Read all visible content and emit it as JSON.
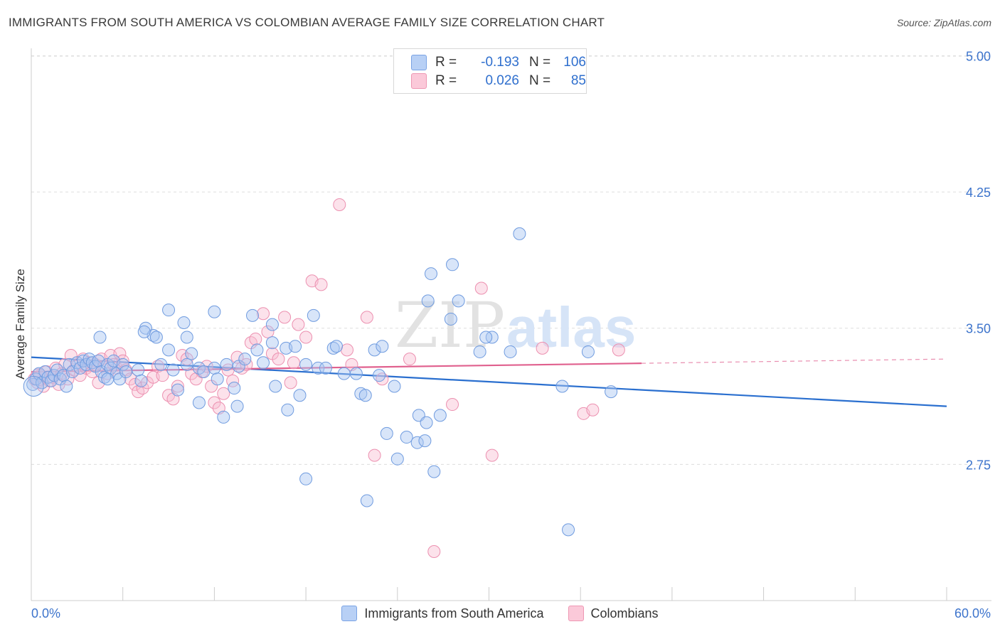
{
  "title": "IMMIGRANTS FROM SOUTH AMERICA VS COLOMBIAN AVERAGE FAMILY SIZE CORRELATION CHART",
  "source": "Source: ZipAtlas.com",
  "watermark": {
    "part1": "ZIP",
    "part2": "atlas"
  },
  "colors": {
    "blue_fill": "#a9c6f2",
    "blue_stroke": "#6f9bdf",
    "blue_line": "#2a6fcf",
    "pink_fill": "#f8bfd2",
    "pink_stroke": "#ec90b0",
    "pink_line": "#e0608e",
    "axis_label": "#3d74cc"
  },
  "legend": {
    "r_label": "R =",
    "n_label": "N =",
    "series": [
      {
        "r": "-0.193",
        "n": "106"
      },
      {
        "r": "0.026",
        "n": "85"
      }
    ]
  },
  "bottom_legend": [
    "Immigrants from South America",
    "Colombians"
  ],
  "chart_data": {
    "type": "scatter",
    "title": "IMMIGRANTS FROM SOUTH AMERICA VS COLOMBIAN AVERAGE FAMILY SIZE CORRELATION CHART",
    "xlabel": "",
    "ylabel": "Average Family Size",
    "xlim": [
      0,
      60
    ],
    "ylim": [
      2.0,
      5.08
    ],
    "x_tick_labels": [
      "0.0%",
      "60.0%"
    ],
    "y_ticks": [
      2.75,
      3.5,
      4.25,
      5.0
    ],
    "y_tick_labels": [
      "2.75",
      "3.50",
      "4.25",
      "5.00"
    ],
    "series": [
      {
        "name": "Immigrants from South America",
        "trend": {
          "x0": 0,
          "y0": 3.34,
          "x1": 60,
          "y1": 3.07,
          "dashed_from": null
        },
        "points": [
          [
            0.1,
            3.19
          ],
          [
            0.3,
            3.22
          ],
          [
            0.5,
            3.25
          ],
          [
            0.7,
            3.2
          ],
          [
            0.9,
            3.26
          ],
          [
            1.1,
            3.23
          ],
          [
            1.3,
            3.21
          ],
          [
            1.5,
            3.24
          ],
          [
            1.7,
            3.27
          ],
          [
            1.9,
            3.22
          ],
          [
            2.1,
            3.24
          ],
          [
            2.3,
            3.18
          ],
          [
            2.5,
            3.3
          ],
          [
            2.7,
            3.26
          ],
          [
            3.0,
            3.31
          ],
          [
            3.2,
            3.28
          ],
          [
            3.4,
            3.32
          ],
          [
            3.6,
            3.3
          ],
          [
            3.8,
            3.33
          ],
          [
            4.0,
            3.31
          ],
          [
            4.2,
            3.29
          ],
          [
            4.4,
            3.32
          ],
          [
            4.6,
            3.26
          ],
          [
            4.8,
            3.23
          ],
          [
            5.0,
            3.3
          ],
          [
            5.2,
            3.28
          ],
          [
            5.4,
            3.32
          ],
          [
            5.6,
            3.25
          ],
          [
            5.8,
            3.22
          ],
          [
            6.0,
            3.3
          ],
          [
            6.2,
            3.26
          ],
          [
            7.0,
            3.27
          ],
          [
            7.2,
            3.21
          ],
          [
            7.5,
            3.5
          ],
          [
            8.0,
            3.46
          ],
          [
            8.5,
            3.3
          ],
          [
            9.0,
            3.38
          ],
          [
            9.3,
            3.27
          ],
          [
            9.6,
            3.16
          ],
          [
            10.2,
            3.3
          ],
          [
            10.5,
            3.36
          ],
          [
            11.0,
            3.28
          ],
          [
            11.3,
            3.26
          ],
          [
            12.0,
            3.28
          ],
          [
            12.2,
            3.22
          ],
          [
            12.6,
            3.01
          ],
          [
            12.8,
            3.3
          ],
          [
            13.3,
            3.17
          ],
          [
            13.6,
            3.29
          ],
          [
            14.0,
            3.33
          ],
          [
            14.5,
            3.57
          ],
          [
            14.8,
            3.38
          ],
          [
            15.2,
            3.31
          ],
          [
            15.8,
            3.52
          ],
          [
            16.0,
            3.18
          ],
          [
            16.7,
            3.39
          ],
          [
            17.3,
            3.4
          ],
          [
            17.6,
            3.13
          ],
          [
            18.0,
            3.3
          ],
          [
            18.5,
            3.57
          ],
          [
            18.8,
            3.28
          ],
          [
            19.3,
            3.28
          ],
          [
            19.8,
            3.39
          ],
          [
            20.5,
            3.25
          ],
          [
            21.3,
            3.25
          ],
          [
            21.6,
            3.14
          ],
          [
            21.9,
            3.13
          ],
          [
            22.8,
            3.24
          ],
          [
            22.5,
            3.38
          ],
          [
            23.3,
            2.92
          ],
          [
            23.8,
            3.18
          ],
          [
            24.0,
            2.78
          ],
          [
            24.6,
            2.9
          ],
          [
            25.4,
            3.02
          ],
          [
            25.9,
            2.98
          ],
          [
            26.8,
            3.02
          ],
          [
            26.2,
            3.8
          ],
          [
            26.0,
            3.65
          ],
          [
            25.3,
            2.87
          ],
          [
            25.8,
            2.88
          ],
          [
            26.4,
            2.71
          ],
          [
            27.6,
            3.85
          ],
          [
            28.0,
            3.65
          ],
          [
            29.4,
            3.37
          ],
          [
            30.2,
            3.45
          ],
          [
            29.8,
            3.45
          ],
          [
            31.4,
            3.37
          ],
          [
            32.0,
            4.02
          ],
          [
            35.2,
            2.39
          ],
          [
            34.8,
            3.18
          ],
          [
            36.5,
            3.37
          ],
          [
            38.0,
            3.15
          ],
          [
            22.0,
            2.55
          ],
          [
            18.0,
            2.67
          ],
          [
            20.0,
            3.4
          ],
          [
            16.8,
            3.05
          ],
          [
            15.8,
            3.42
          ],
          [
            27.5,
            3.55
          ],
          [
            23.0,
            3.4
          ],
          [
            13.5,
            3.07
          ],
          [
            12.0,
            3.59
          ],
          [
            10.2,
            3.45
          ],
          [
            10.0,
            3.53
          ],
          [
            9.0,
            3.6
          ],
          [
            8.2,
            3.45
          ],
          [
            7.4,
            3.48
          ],
          [
            11.0,
            3.09
          ],
          [
            5.0,
            3.22
          ],
          [
            4.5,
            3.45
          ]
        ]
      },
      {
        "name": "Colombians",
        "trend": {
          "x0": 0,
          "y0": 3.26,
          "x1": 60,
          "y1": 3.33,
          "dashed_from": 40
        },
        "points": [
          [
            0.2,
            3.22
          ],
          [
            0.4,
            3.2
          ],
          [
            0.6,
            3.24
          ],
          [
            0.8,
            3.18
          ],
          [
            1.0,
            3.26
          ],
          [
            1.2,
            3.21
          ],
          [
            1.4,
            3.23
          ],
          [
            1.6,
            3.28
          ],
          [
            1.8,
            3.19
          ],
          [
            2.0,
            3.25
          ],
          [
            2.2,
            3.3
          ],
          [
            2.4,
            3.22
          ],
          [
            2.6,
            3.35
          ],
          [
            2.8,
            3.27
          ],
          [
            3.0,
            3.29
          ],
          [
            3.2,
            3.24
          ],
          [
            3.4,
            3.33
          ],
          [
            3.6,
            3.28
          ],
          [
            3.8,
            3.31
          ],
          [
            4.0,
            3.26
          ],
          [
            4.2,
            3.3
          ],
          [
            4.4,
            3.2
          ],
          [
            4.6,
            3.33
          ],
          [
            4.8,
            3.29
          ],
          [
            5.0,
            3.25
          ],
          [
            5.2,
            3.35
          ],
          [
            5.4,
            3.3
          ],
          [
            5.6,
            3.28
          ],
          [
            5.8,
            3.36
          ],
          [
            6.0,
            3.32
          ],
          [
            6.2,
            3.27
          ],
          [
            6.5,
            3.22
          ],
          [
            6.8,
            3.19
          ],
          [
            7.0,
            3.15
          ],
          [
            7.3,
            3.17
          ],
          [
            7.6,
            3.2
          ],
          [
            8.0,
            3.23
          ],
          [
            8.3,
            3.29
          ],
          [
            8.6,
            3.24
          ],
          [
            9.0,
            3.13
          ],
          [
            9.3,
            3.11
          ],
          [
            9.6,
            3.18
          ],
          [
            9.9,
            3.35
          ],
          [
            10.2,
            3.33
          ],
          [
            10.5,
            3.25
          ],
          [
            10.8,
            3.22
          ],
          [
            11.2,
            3.26
          ],
          [
            11.5,
            3.29
          ],
          [
            11.8,
            3.18
          ],
          [
            12.0,
            3.09
          ],
          [
            12.3,
            3.06
          ],
          [
            12.6,
            3.14
          ],
          [
            12.9,
            3.27
          ],
          [
            13.2,
            3.21
          ],
          [
            13.5,
            3.34
          ],
          [
            13.8,
            3.28
          ],
          [
            14.1,
            3.3
          ],
          [
            14.4,
            3.42
          ],
          [
            14.7,
            3.44
          ],
          [
            15.2,
            3.58
          ],
          [
            15.5,
            3.48
          ],
          [
            15.8,
            3.36
          ],
          [
            16.2,
            3.33
          ],
          [
            16.6,
            3.56
          ],
          [
            17.0,
            3.2
          ],
          [
            17.2,
            3.31
          ],
          [
            17.5,
            3.52
          ],
          [
            18.0,
            3.45
          ],
          [
            18.4,
            3.76
          ],
          [
            19.0,
            3.74
          ],
          [
            20.2,
            4.18
          ],
          [
            20.7,
            3.38
          ],
          [
            21.0,
            3.3
          ],
          [
            22.0,
            3.56
          ],
          [
            22.5,
            2.8
          ],
          [
            23.0,
            3.22
          ],
          [
            24.8,
            3.33
          ],
          [
            26.4,
            2.27
          ],
          [
            27.6,
            3.08
          ],
          [
            29.5,
            3.72
          ],
          [
            30.2,
            2.8
          ],
          [
            33.5,
            3.39
          ],
          [
            36.2,
            3.03
          ],
          [
            36.8,
            3.05
          ],
          [
            38.5,
            3.38
          ]
        ]
      }
    ]
  }
}
